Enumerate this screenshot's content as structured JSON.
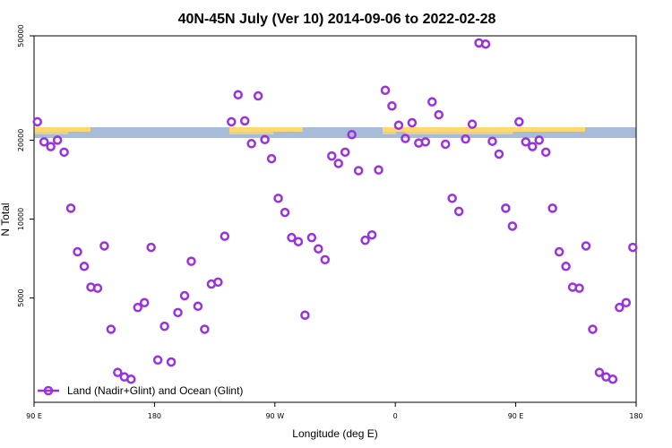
{
  "chart_data": {
    "type": "scatter",
    "title": "40N-45N July (Ver 10)   2014-09-06 to 2022-02-28",
    "xlabel": "Longitude (deg E)",
    "ylabel": "N Total",
    "x_ticks": [
      {
        "value": 90,
        "label": "90 E"
      },
      {
        "value": 180,
        "label": "180"
      },
      {
        "value": 270,
        "label": "90 W"
      },
      {
        "value": 360,
        "label": "0"
      },
      {
        "value": 450,
        "label": "90 E"
      },
      {
        "value": 540,
        "label": "180"
      }
    ],
    "y_ticks": [
      {
        "value": 5000,
        "label": "5000"
      },
      {
        "value": 10000,
        "label": "10000"
      },
      {
        "value": 20000,
        "label": "20000"
      },
      {
        "value": 50000,
        "label": "50000"
      }
    ],
    "xlim": [
      90,
      540
    ],
    "ylim": [
      2000,
      50000
    ],
    "y_scale": "log",
    "legend": {
      "label": "Land (Nadir+Glint) and Ocean (Glint)",
      "position": "bottom-left"
    },
    "marker_color": "#9b30e0",
    "land_band_color": "#a7bcd9",
    "land_band_highlight": "#ffd970",
    "series": [
      {
        "name": "Land (Nadir+Glint) and Ocean (Glint)",
        "x": [
          92.5,
          97.5,
          102.5,
          107.5,
          112.5,
          117.5,
          122.5,
          127.5,
          132.5,
          137.5,
          142.5,
          147.5,
          152.5,
          157.5,
          162.5,
          167.5,
          172.5,
          177.5,
          182.5,
          187.5,
          192.5,
          197.5,
          202.5,
          207.5,
          212.5,
          217.5,
          222.5,
          227.5,
          232.5,
          237.5,
          242.5,
          247.5,
          252.5,
          257.5,
          262.5,
          267.5,
          272.5,
          277.5,
          282.5,
          287.5,
          292.5,
          297.5,
          302.5,
          307.5,
          312.5,
          317.5,
          322.5,
          327.5,
          332.5,
          337.5,
          342.5,
          347.5,
          352.5,
          357.5,
          362.5,
          367.5,
          372.5,
          377.5,
          382.5,
          387.5,
          392.5,
          397.5,
          402.5,
          407.5,
          412.5,
          417.5,
          422.5,
          427.5,
          432.5,
          437.5,
          442.5,
          447.5,
          452.5,
          457.5,
          462.5,
          467.5,
          472.5,
          477.5,
          482.5,
          487.5,
          492.5,
          497.5,
          502.5,
          507.5,
          512.5,
          517.5,
          522.5,
          527.5,
          532.5,
          537.5
        ],
        "y": [
          23500,
          19700,
          18900,
          20000,
          18000,
          11000,
          7500,
          6600,
          5500,
          5450,
          7900,
          3800,
          2600,
          2500,
          2450,
          4600,
          4800,
          7800,
          2900,
          3900,
          2850,
          4400,
          5100,
          6900,
          4650,
          3800,
          5650,
          5750,
          8600,
          23500,
          29800,
          23700,
          19400,
          29500,
          20100,
          17000,
          12000,
          10600,
          8500,
          8200,
          4300,
          8500,
          7700,
          7000,
          17400,
          16300,
          18000,
          21000,
          15300,
          8300,
          8700,
          15400,
          31000,
          27000,
          22800,
          20300,
          23300,
          19500,
          19700,
          28000,
          25000,
          19300,
          12000,
          10700,
          20200,
          23000,
          47000,
          46500,
          19800,
          17700,
          11000,
          9400,
          23500,
          19700,
          18900,
          20000,
          18000,
          11000,
          7500,
          6600,
          5500,
          5450,
          7900,
          3800,
          2600,
          2500,
          2450,
          4600,
          4800,
          7800
        ]
      }
    ]
  }
}
